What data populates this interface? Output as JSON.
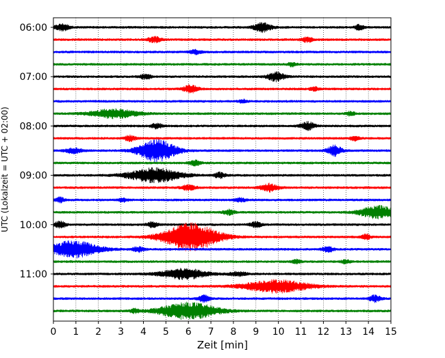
{
  "chart_data": {
    "type": "line",
    "title": "",
    "xlabel": "Zeit  [min]",
    "ylabel": "UTC (Lokalzeit = UTC + 02:00)",
    "xlim": [
      0,
      15
    ],
    "x_ticks": [
      0,
      1,
      2,
      3,
      4,
      5,
      6,
      7,
      8,
      9,
      10,
      11,
      12,
      13,
      14,
      15
    ],
    "x_tick_labels": [
      "0",
      "1",
      "2",
      "3",
      "4",
      "5",
      "6",
      "7",
      "8",
      "9",
      "10",
      "11",
      "12",
      "13",
      "14",
      "15"
    ],
    "y_tick_labels": [
      "06:00",
      "07:00",
      "08:00",
      "09:00",
      "10:00",
      "11:00"
    ],
    "y_tick_row_index": [
      0,
      4,
      8,
      12,
      16,
      20
    ],
    "row_minutes": 15,
    "grid": "vertical-dotted",
    "color_cycle": [
      "#000000",
      "#ff0000",
      "#0000ff",
      "#008000"
    ],
    "rows": [
      {
        "start": "06:00",
        "color": "#000000",
        "events": [
          {
            "t": 0.4,
            "amp": 0.5,
            "dur": 0.5
          },
          {
            "t": 9.3,
            "amp": 0.7,
            "dur": 0.6
          },
          {
            "t": 13.6,
            "amp": 0.4,
            "dur": 0.3
          }
        ]
      },
      {
        "start": "06:15",
        "color": "#ff0000",
        "events": [
          {
            "t": 4.5,
            "amp": 0.4,
            "dur": 0.5
          },
          {
            "t": 11.3,
            "amp": 0.4,
            "dur": 0.4
          }
        ]
      },
      {
        "start": "06:30",
        "color": "#0000ff",
        "events": [
          {
            "t": 6.3,
            "amp": 0.3,
            "dur": 0.4
          }
        ]
      },
      {
        "start": "06:45",
        "color": "#008000",
        "events": [
          {
            "t": 10.6,
            "amp": 0.3,
            "dur": 0.3
          }
        ]
      },
      {
        "start": "07:00",
        "color": "#000000",
        "events": [
          {
            "t": 4.1,
            "amp": 0.4,
            "dur": 0.4
          },
          {
            "t": 9.9,
            "amp": 0.7,
            "dur": 0.6
          }
        ]
      },
      {
        "start": "07:15",
        "color": "#ff0000",
        "events": [
          {
            "t": 6.1,
            "amp": 0.6,
            "dur": 0.5
          },
          {
            "t": 11.6,
            "amp": 0.3,
            "dur": 0.3
          }
        ]
      },
      {
        "start": "07:30",
        "color": "#0000ff",
        "events": [
          {
            "t": 8.4,
            "amp": 0.3,
            "dur": 0.3
          }
        ]
      },
      {
        "start": "07:45",
        "color": "#008000",
        "events": [
          {
            "t": 2.7,
            "amp": 0.7,
            "dur": 1.6
          },
          {
            "t": 13.2,
            "amp": 0.3,
            "dur": 0.3
          }
        ]
      },
      {
        "start": "08:00",
        "color": "#000000",
        "events": [
          {
            "t": 4.6,
            "amp": 0.4,
            "dur": 0.4
          },
          {
            "t": 11.3,
            "amp": 0.6,
            "dur": 0.5
          }
        ]
      },
      {
        "start": "08:15",
        "color": "#ff0000",
        "events": [
          {
            "t": 3.4,
            "amp": 0.4,
            "dur": 0.4
          },
          {
            "t": 13.4,
            "amp": 0.4,
            "dur": 0.3
          }
        ]
      },
      {
        "start": "08:30",
        "color": "#0000ff",
        "events": [
          {
            "t": 0.9,
            "amp": 0.4,
            "dur": 0.6
          },
          {
            "t": 4.6,
            "amp": 1.7,
            "dur": 1.3
          },
          {
            "t": 12.5,
            "amp": 0.8,
            "dur": 0.5
          }
        ]
      },
      {
        "start": "08:45",
        "color": "#008000",
        "events": [
          {
            "t": 6.3,
            "amp": 0.4,
            "dur": 0.4
          }
        ]
      },
      {
        "start": "09:00",
        "color": "#000000",
        "events": [
          {
            "t": 4.5,
            "amp": 1.1,
            "dur": 1.8
          },
          {
            "t": 7.4,
            "amp": 0.4,
            "dur": 0.4
          }
        ]
      },
      {
        "start": "09:15",
        "color": "#ff0000",
        "events": [
          {
            "t": 6.0,
            "amp": 0.4,
            "dur": 0.5
          },
          {
            "t": 9.6,
            "amp": 0.6,
            "dur": 0.6
          }
        ]
      },
      {
        "start": "09:30",
        "color": "#0000ff",
        "events": [
          {
            "t": 0.3,
            "amp": 0.4,
            "dur": 0.3
          },
          {
            "t": 3.1,
            "amp": 0.3,
            "dur": 0.3
          },
          {
            "t": 8.3,
            "amp": 0.3,
            "dur": 0.4
          }
        ]
      },
      {
        "start": "09:45",
        "color": "#008000",
        "events": [
          {
            "t": 7.8,
            "amp": 0.4,
            "dur": 0.4
          },
          {
            "t": 14.4,
            "amp": 1.0,
            "dur": 1.2
          }
        ]
      },
      {
        "start": "10:00",
        "color": "#000000",
        "events": [
          {
            "t": 0.3,
            "amp": 0.5,
            "dur": 0.4
          },
          {
            "t": 4.4,
            "amp": 0.4,
            "dur": 0.4
          },
          {
            "t": 9.0,
            "amp": 0.4,
            "dur": 0.4
          }
        ]
      },
      {
        "start": "10:15",
        "color": "#ff0000",
        "events": [
          {
            "t": 6.1,
            "amp": 2.2,
            "dur": 1.9
          },
          {
            "t": 13.9,
            "amp": 0.4,
            "dur": 0.3
          }
        ]
      },
      {
        "start": "10:30",
        "color": "#0000ff",
        "events": [
          {
            "t": 0.9,
            "amp": 1.3,
            "dur": 1.7
          },
          {
            "t": 3.8,
            "amp": 0.4,
            "dur": 0.4
          },
          {
            "t": 12.2,
            "amp": 0.4,
            "dur": 0.4
          }
        ]
      },
      {
        "start": "10:45",
        "color": "#008000",
        "events": [
          {
            "t": 10.8,
            "amp": 0.3,
            "dur": 0.3
          },
          {
            "t": 13.0,
            "amp": 0.3,
            "dur": 0.3
          }
        ]
      },
      {
        "start": "11:00",
        "color": "#000000",
        "events": [
          {
            "t": 5.8,
            "amp": 0.8,
            "dur": 1.6
          },
          {
            "t": 8.2,
            "amp": 0.3,
            "dur": 0.6
          }
        ]
      },
      {
        "start": "11:15",
        "color": "#ff0000",
        "events": [
          {
            "t": 9.9,
            "amp": 1.0,
            "dur": 2.2
          }
        ]
      },
      {
        "start": "11:30",
        "color": "#0000ff",
        "events": [
          {
            "t": 6.7,
            "amp": 0.5,
            "dur": 0.4
          },
          {
            "t": 14.3,
            "amp": 0.5,
            "dur": 0.4
          }
        ]
      },
      {
        "start": "11:45",
        "color": "#008000",
        "events": [
          {
            "t": 6.0,
            "amp": 1.3,
            "dur": 2.0
          },
          {
            "t": 3.6,
            "amp": 0.3,
            "dur": 0.3
          }
        ]
      }
    ]
  }
}
